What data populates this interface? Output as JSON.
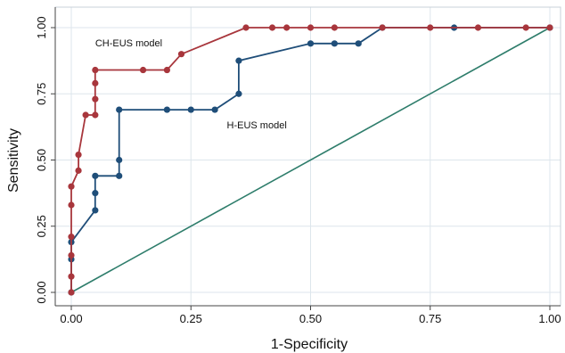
{
  "chart_data": {
    "type": "line",
    "title": "",
    "xlabel": "1-Specificity",
    "ylabel": "Sensitivity",
    "xlim": [
      0,
      1
    ],
    "ylim": [
      0,
      1
    ],
    "xticks": [
      "0.00",
      "0.25",
      "0.50",
      "0.75",
      "1.00"
    ],
    "yticks": [
      "0.00",
      "0.25",
      "0.50",
      "0.75",
      "1.00"
    ],
    "grid": true,
    "legend": "none",
    "series": [
      {
        "name": "CH-EUS model",
        "color": "#a8363c",
        "points": [
          [
            0,
            0
          ],
          [
            0,
            0.06
          ],
          [
            0,
            0.14
          ],
          [
            0,
            0.21
          ],
          [
            0,
            0.33
          ],
          [
            0,
            0.4
          ],
          [
            0.015,
            0.46
          ],
          [
            0.015,
            0.52
          ],
          [
            0.03,
            0.67
          ],
          [
            0.05,
            0.67
          ],
          [
            0.05,
            0.73
          ],
          [
            0.05,
            0.79
          ],
          [
            0.05,
            0.84
          ],
          [
            0.15,
            0.84
          ],
          [
            0.2,
            0.84
          ],
          [
            0.23,
            0.9
          ],
          [
            0.365,
            1.0
          ],
          [
            0.42,
            1.0
          ],
          [
            0.45,
            1.0
          ],
          [
            0.5,
            1.0
          ],
          [
            0.55,
            1.0
          ],
          [
            0.65,
            1.0
          ],
          [
            0.75,
            1.0
          ],
          [
            0.85,
            1.0
          ],
          [
            0.95,
            1.0
          ],
          [
            1.0,
            1.0
          ]
        ]
      },
      {
        "name": "H-EUS model",
        "color": "#1f4e79",
        "points": [
          [
            0,
            0
          ],
          [
            0,
            0.125
          ],
          [
            0,
            0.19
          ],
          [
            0.05,
            0.31
          ],
          [
            0.05,
            0.375
          ],
          [
            0.05,
            0.44
          ],
          [
            0.1,
            0.44
          ],
          [
            0.1,
            0.5
          ],
          [
            0.1,
            0.69
          ],
          [
            0.2,
            0.69
          ],
          [
            0.25,
            0.69
          ],
          [
            0.3,
            0.69
          ],
          [
            0.35,
            0.75
          ],
          [
            0.35,
            0.875
          ],
          [
            0.5,
            0.94
          ],
          [
            0.55,
            0.94
          ],
          [
            0.6,
            0.94
          ],
          [
            0.65,
            1.0
          ],
          [
            0.8,
            1.0
          ],
          [
            1.0,
            1.0
          ]
        ]
      },
      {
        "name": "",
        "color": "#2e7d6b",
        "points": [
          [
            0,
            0
          ],
          [
            1,
            1
          ]
        ]
      }
    ],
    "annotations": [
      {
        "text": "CH-EUS model",
        "at": [
          0.05,
          0.93
        ]
      },
      {
        "text": "H-EUS model",
        "at": [
          0.325,
          0.62
        ]
      }
    ]
  }
}
